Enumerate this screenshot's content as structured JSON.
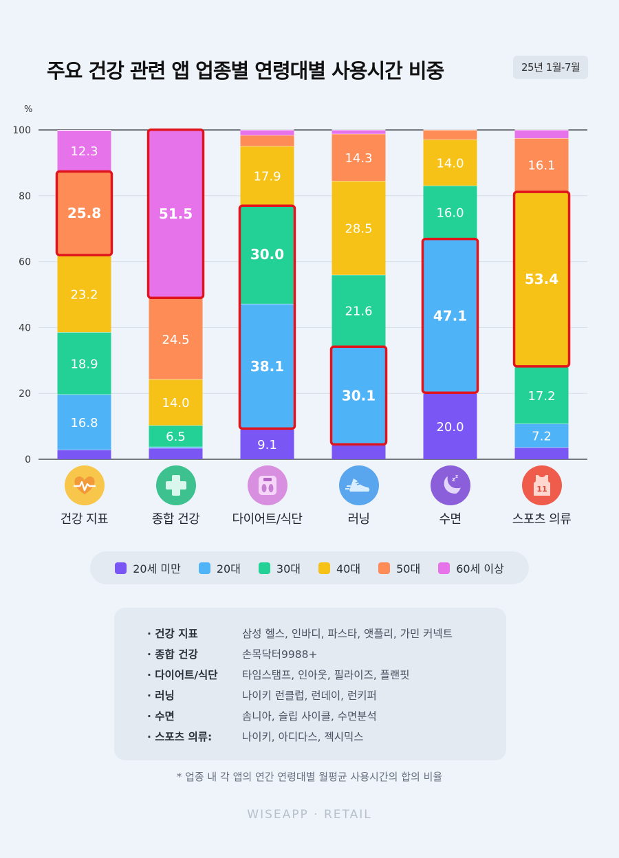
{
  "title": "주요 건강 관련 앱 업종별 연령대별 사용시간 비중",
  "period": "25년 1월-7월",
  "y_unit": "%",
  "colors": {
    "20세 미만": "#7a56f5",
    "20대": "#4fb3f7",
    "30대": "#23d196",
    "40대": "#f6c218",
    "50대": "#fd8c56",
    "60세 이상": "#e673ea",
    "highlight": "#e0141c"
  },
  "chart_data": {
    "type": "bar",
    "stacked": true,
    "ylim": [
      0,
      100
    ],
    "yticks": [
      0,
      20,
      40,
      60,
      80,
      100
    ],
    "grid": true,
    "legend_position": "bottom",
    "categories": [
      "건강 지표",
      "종합 건강",
      "다이어트/식단",
      "러닝",
      "수면",
      "스포츠 의류"
    ],
    "category_icons": [
      "heart-pulse-icon",
      "medical-cross-icon",
      "scale-icon",
      "running-shoe-icon",
      "moon-sleep-icon",
      "jersey-icon"
    ],
    "series": [
      {
        "name": "20세 미만",
        "values": [
          2.9,
          3.4,
          9.1,
          4.3,
          20.0,
          3.6
        ]
      },
      {
        "name": "20대",
        "values": [
          16.8,
          0.4,
          38.1,
          30.1,
          47.1,
          7.2
        ]
      },
      {
        "name": "30대",
        "values": [
          18.9,
          6.5,
          30.0,
          21.6,
          16.0,
          17.2
        ]
      },
      {
        "name": "40대",
        "values": [
          23.2,
          14.0,
          17.9,
          28.5,
          14.0,
          53.4
        ]
      },
      {
        "name": "50대",
        "values": [
          25.8,
          24.5,
          3.3,
          14.3,
          2.9,
          16.1
        ]
      },
      {
        "name": "60세 이상",
        "values": [
          12.3,
          51.5,
          1.6,
          1.2,
          0.0,
          2.5
        ]
      }
    ],
    "data_labels": [
      {
        "category": "건강 지표",
        "series": "20대",
        "text": "16.8"
      },
      {
        "category": "건강 지표",
        "series": "30대",
        "text": "18.9"
      },
      {
        "category": "건강 지표",
        "series": "40대",
        "text": "23.2"
      },
      {
        "category": "건강 지표",
        "series": "50대",
        "text": "25.8",
        "bold": true
      },
      {
        "category": "건강 지표",
        "series": "60세 이상",
        "text": "12.3"
      },
      {
        "category": "종합 건강",
        "series": "30대",
        "text": "6.5"
      },
      {
        "category": "종합 건강",
        "series": "40대",
        "text": "14.0"
      },
      {
        "category": "종합 건강",
        "series": "50대",
        "text": "24.5"
      },
      {
        "category": "종합 건강",
        "series": "60세 이상",
        "text": "51.5",
        "bold": true
      },
      {
        "category": "다이어트/식단",
        "series": "20세 미만",
        "text": "9.1"
      },
      {
        "category": "다이어트/식단",
        "series": "20대",
        "text": "38.1",
        "bold": true
      },
      {
        "category": "다이어트/식단",
        "series": "30대",
        "text": "30.0",
        "bold": true
      },
      {
        "category": "다이어트/식단",
        "series": "40대",
        "text": "17.9"
      },
      {
        "category": "러닝",
        "series": "20대",
        "text": "30.1",
        "bold": true
      },
      {
        "category": "러닝",
        "series": "30대",
        "text": "21.6"
      },
      {
        "category": "러닝",
        "series": "40대",
        "text": "28.5"
      },
      {
        "category": "러닝",
        "series": "50대",
        "text": "14.3"
      },
      {
        "category": "수면",
        "series": "20세 미만",
        "text": "20.0"
      },
      {
        "category": "수면",
        "series": "20대",
        "text": "47.1",
        "bold": true
      },
      {
        "category": "수면",
        "series": "30대",
        "text": "16.0"
      },
      {
        "category": "수면",
        "series": "40대",
        "text": "14.0"
      },
      {
        "category": "스포츠 의류",
        "series": "20대",
        "text": "7.2"
      },
      {
        "category": "스포츠 의류",
        "series": "30대",
        "text": "17.2"
      },
      {
        "category": "스포츠 의류",
        "series": "40대",
        "text": "53.4",
        "bold": true
      },
      {
        "category": "스포츠 의류",
        "series": "50대",
        "text": "16.1"
      }
    ],
    "highlights": [
      {
        "category": "건강 지표",
        "series": [
          "50대"
        ]
      },
      {
        "category": "종합 건강",
        "series": [
          "60세 이상"
        ]
      },
      {
        "category": "다이어트/식단",
        "series": [
          "20대",
          "30대"
        ]
      },
      {
        "category": "러닝",
        "series": [
          "20대"
        ]
      },
      {
        "category": "수면",
        "series": [
          "20대"
        ]
      },
      {
        "category": "스포츠 의류",
        "series": [
          "40대"
        ]
      }
    ]
  },
  "legend": [
    "20세 미만",
    "20대",
    "30대",
    "40대",
    "50대",
    "60세 이상"
  ],
  "notes": [
    {
      "category": "건강 지표",
      "apps": "삼성 헬스, 인바디, 파스타, 앳플리, 가민 커넥트"
    },
    {
      "category": "종합 건강",
      "apps": "손목닥터9988+"
    },
    {
      "category": "다이어트/식단",
      "apps": "타임스탬프, 인아웃, 필라이즈, 플랜핏"
    },
    {
      "category": "러닝",
      "apps": "나이키 런클럽, 런데이, 런키퍼"
    },
    {
      "category": "수면",
      "apps": "솜니아, 슬립 사이클, 수면분석"
    },
    {
      "category": "스포츠 의류:",
      "apps": "나이키, 아디다스, 젝시믹스"
    }
  ],
  "footnote": "* 업종 내 각 앱의 연간 연령대별 월평균 사용시간의 합의 비율",
  "brand": "WISEAPP · RETAIL"
}
